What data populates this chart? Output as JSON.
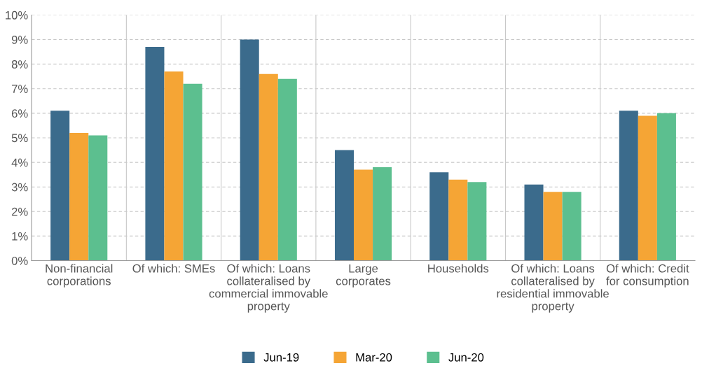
{
  "chart_data": {
    "type": "bar",
    "categories": [
      "Non-financial\ncorporations",
      "Of which: SMEs",
      "Of which: Loans\ncollateralised by\ncommercial immovable\nproperty",
      "Large\ncorporates",
      "Households",
      "Of which: Loans\ncollateralised by\nresidential immovable\nproperty",
      "Of which: Credit\nfor consumption"
    ],
    "series": [
      {
        "name": "Jun-19",
        "color": "#3b6b8c",
        "values": [
          6.1,
          8.7,
          9.0,
          4.5,
          3.6,
          3.1,
          6.1
        ]
      },
      {
        "name": "Mar-20",
        "color": "#f5a535",
        "values": [
          5.2,
          7.7,
          7.6,
          3.7,
          3.3,
          2.8,
          5.9
        ]
      },
      {
        "name": "Jun-20",
        "color": "#5cbf8f",
        "values": [
          5.1,
          7.2,
          7.4,
          3.8,
          3.2,
          2.8,
          6.0
        ]
      }
    ],
    "ylim": [
      0,
      10
    ],
    "yticks": [
      {
        "value": 0,
        "label": "0%"
      },
      {
        "value": 1,
        "label": "1%"
      },
      {
        "value": 2,
        "label": "2%"
      },
      {
        "value": 3,
        "label": "3%"
      },
      {
        "value": 4,
        "label": "4%"
      },
      {
        "value": 5,
        "label": "5%"
      },
      {
        "value": 6,
        "label": "6%"
      },
      {
        "value": 7,
        "label": "7%"
      },
      {
        "value": 8,
        "label": "8%"
      },
      {
        "value": 9,
        "label": "9%"
      },
      {
        "value": 10,
        "label": "10%"
      }
    ],
    "grid": true,
    "legend": "bottom"
  }
}
